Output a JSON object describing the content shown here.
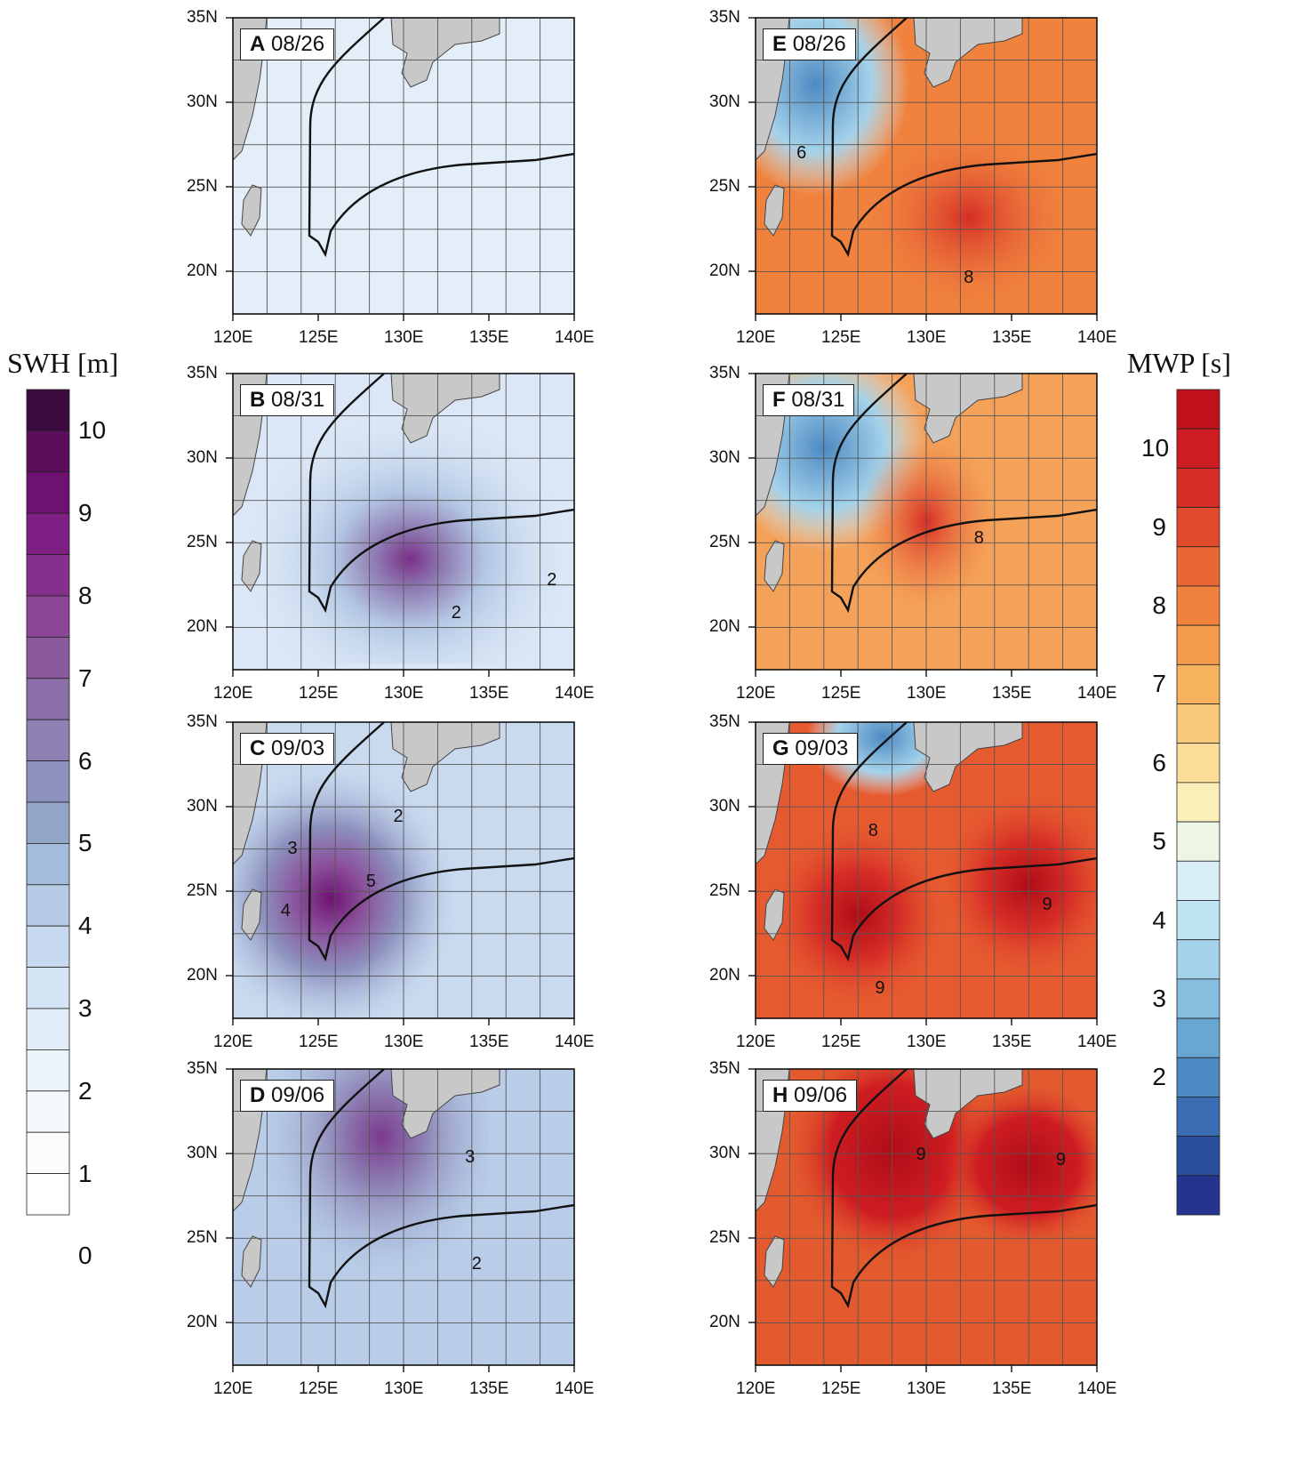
{
  "figure": {
    "swh_colorbar": {
      "title": "SWH [m]",
      "ticks": [
        "10",
        "9",
        "8",
        "7",
        "6",
        "5",
        "4",
        "3",
        "2",
        "1",
        "0"
      ],
      "colors": [
        "#3d0a3f",
        "#5a0e5c",
        "#6e1272",
        "#7e1f83",
        "#872f8d",
        "#8b4595",
        "#8a5a9d",
        "#8b6ea8",
        "#8d80b3",
        "#8d92be",
        "#92a5c9",
        "#a4bcdb",
        "#b6cbe6",
        "#c7d9ef",
        "#d6e5f6",
        "#e1edf9",
        "#ebf3fb",
        "#f3f8fd",
        "#fafcfe",
        "#ffffff"
      ]
    },
    "mwp_colorbar": {
      "title": "MWP [s]",
      "ticks": [
        "10",
        "9",
        "8",
        "7",
        "6",
        "5",
        "4",
        "3",
        "2"
      ],
      "colors": [
        "#c1121b",
        "#ce1d22",
        "#d62d26",
        "#e14a2c",
        "#ea6634",
        "#f0823e",
        "#f49a4b",
        "#f6b25d",
        "#f8c978",
        "#fbdd98",
        "#fceeb9",
        "#edf6e5",
        "#d8eef6",
        "#bfe3f1",
        "#a4d2ea",
        "#87bedf",
        "#6aa6d2",
        "#4d89c2",
        "#3b6db3",
        "#2a4e9e",
        "#25338f"
      ]
    },
    "lat_ticks": [
      "35N",
      "30N",
      "25N",
      "20N"
    ],
    "lon_ticks": [
      "120E",
      "125E",
      "130E",
      "135E",
      "140E"
    ],
    "panels": [
      {
        "letter": "A",
        "date": "08/26",
        "contours": []
      },
      {
        "letter": "E",
        "date": "08/26",
        "contours": [
          "6",
          "8"
        ]
      },
      {
        "letter": "B",
        "date": "08/31",
        "contours": [
          "2",
          "2"
        ]
      },
      {
        "letter": "F",
        "date": "08/31",
        "contours": [
          "8"
        ]
      },
      {
        "letter": "C",
        "date": "09/03",
        "contours": [
          "3",
          "2",
          "5",
          "4"
        ]
      },
      {
        "letter": "G",
        "date": "09/03",
        "contours": [
          "8",
          "9",
          "9"
        ]
      },
      {
        "letter": "D",
        "date": "09/06",
        "contours": [
          "3",
          "2"
        ]
      },
      {
        "letter": "H",
        "date": "09/06",
        "contours": [
          "9",
          "9"
        ]
      }
    ]
  }
}
